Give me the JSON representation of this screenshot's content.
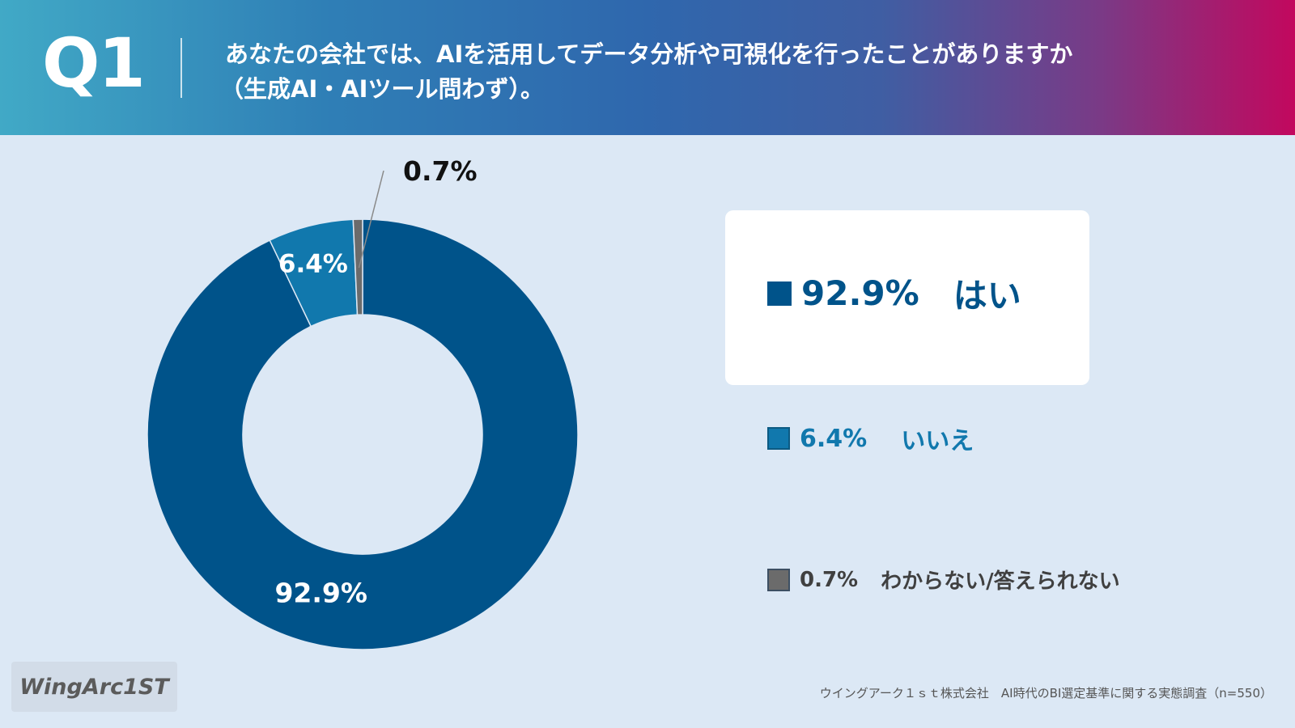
{
  "header": {
    "question_number": "Q1",
    "question_line1": "あなたの会社では、AIを活用してデータ分析や可視化を行ったことがありますか",
    "question_line2": "（生成AI・AIツール問わず）。"
  },
  "chart_data": {
    "type": "pie",
    "style": "donut",
    "categories": [
      "はい",
      "いいえ",
      "わからない/答えられない"
    ],
    "values": [
      92.9,
      6.4,
      0.7
    ],
    "data_labels": [
      "92.9%",
      "6.4%",
      "0.7%"
    ],
    "colors": [
      "#00538a",
      "#1178ad",
      "#6b6b6b"
    ],
    "legend_position": "right"
  },
  "legend": {
    "items": [
      {
        "value": "92.9%",
        "label": "はい"
      },
      {
        "value": "6.4%",
        "label": "いいえ"
      },
      {
        "value": "0.7%",
        "label": "わからない/答えられない"
      }
    ]
  },
  "footer": {
    "logo_text": "WingArc1ST",
    "source": "ウイングアーク１ｓｔ株式会社　AI時代のBI選定基準に関する実態調査（n=550）"
  }
}
